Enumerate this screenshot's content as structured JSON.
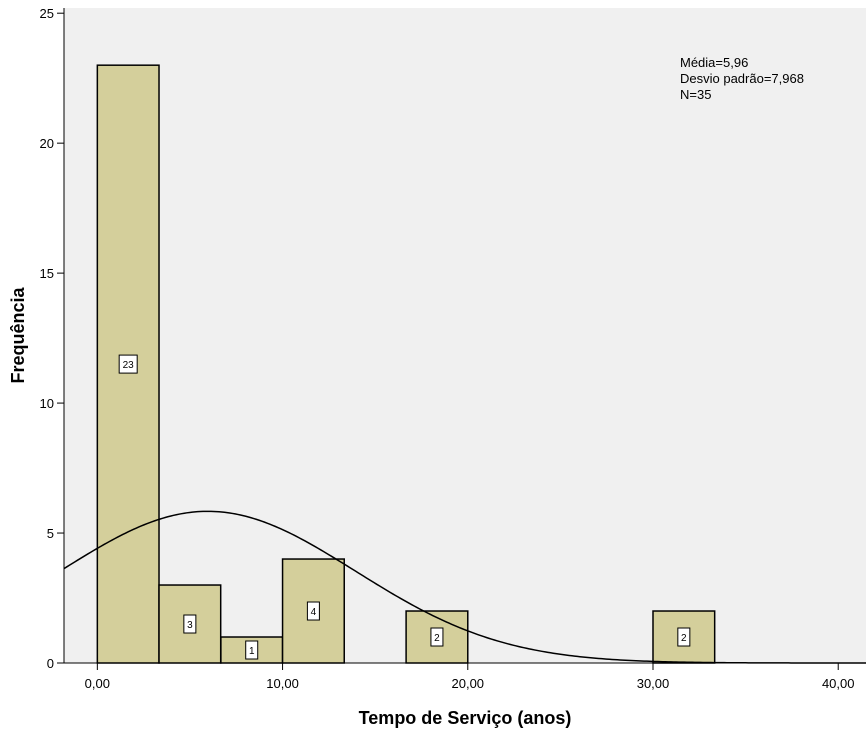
{
  "chart_data": {
    "type": "bar",
    "subtype": "histogram",
    "title": "",
    "xlabel": "Tempo de Serviço (anos)",
    "ylabel": "Frequência",
    "xlim": [
      -1.8,
      41.5
    ],
    "ylim": [
      0,
      25.2
    ],
    "grid": false,
    "x_ticks": [
      {
        "value": 0,
        "label": "0,00"
      },
      {
        "value": 10,
        "label": "10,00"
      },
      {
        "value": 20,
        "label": "20,00"
      },
      {
        "value": 30,
        "label": "30,00"
      },
      {
        "value": 40,
        "label": "40,00"
      }
    ],
    "y_ticks": [
      {
        "value": 0,
        "label": "0"
      },
      {
        "value": 5,
        "label": "5"
      },
      {
        "value": 10,
        "label": "10"
      },
      {
        "value": 15,
        "label": "15"
      },
      {
        "value": 20,
        "label": "20"
      },
      {
        "value": 25,
        "label": "25"
      }
    ],
    "bin_width": 3.33,
    "bins": [
      {
        "start": 0.0,
        "count": 23,
        "label": "23"
      },
      {
        "start": 3.33,
        "count": 3,
        "label": "3"
      },
      {
        "start": 6.67,
        "count": 1,
        "label": "1"
      },
      {
        "start": 10.0,
        "count": 4,
        "label": "4"
      },
      {
        "start": 16.67,
        "count": 2,
        "label": "2"
      },
      {
        "start": 30.0,
        "count": 2,
        "label": "2"
      }
    ],
    "normal_curve": {
      "mean": 5.96,
      "sd": 7.968,
      "n": 35
    },
    "stats_text": [
      "Média=5,96",
      "Desvio padrão=7,968",
      "N=35"
    ],
    "colors": {
      "bar_fill": "#d4cf9b",
      "bar_stroke": "#000000",
      "plot_background": "#f0f0f0",
      "curve": "#000000"
    }
  }
}
